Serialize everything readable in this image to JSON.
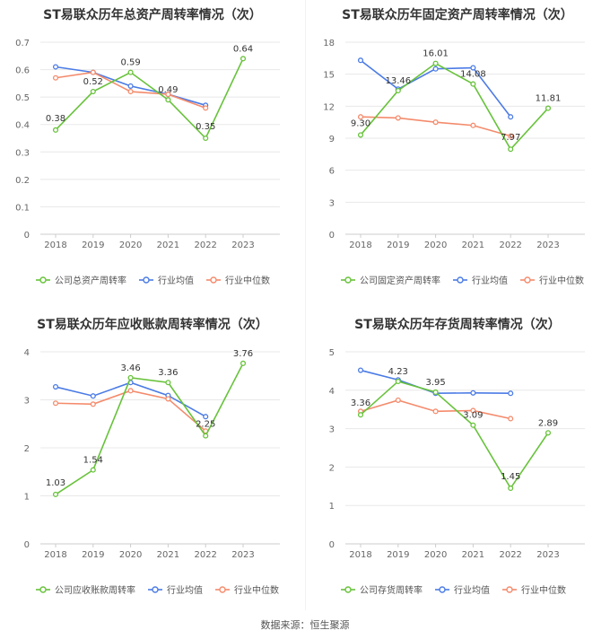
{
  "colors": {
    "company": "#67c23a",
    "avg": "#4b7be5",
    "median": "#f48b6c",
    "grid": "#e8e8e8",
    "axis": "#666666"
  },
  "legend": {
    "avg": "行业均值",
    "median": "行业中位数"
  },
  "source": "数据来源：恒生聚源",
  "chart_data": [
    {
      "type": "line",
      "title": "ST易联众历年总资产周转率情况（次）",
      "x": [
        "2018",
        "2019",
        "2020",
        "2021",
        "2022",
        "2023"
      ],
      "ylim": [
        0,
        0.7
      ],
      "yticks": [
        0,
        0.1,
        0.2,
        0.3,
        0.4,
        0.5,
        0.6,
        0.7
      ],
      "ytick_labels": [
        "0",
        "0.1",
        "0.2",
        "0.3",
        "0.4",
        "0.5",
        "0.6",
        "0.7"
      ],
      "series": [
        {
          "name": "公司总资产周转率",
          "values": [
            0.38,
            0.52,
            0.59,
            0.49,
            0.35,
            0.64
          ],
          "labels": [
            "0.38",
            "0.52",
            "0.59",
            "0.49",
            "0.35",
            "0.64"
          ]
        },
        {
          "name": "行业均值",
          "values": [
            0.61,
            0.59,
            0.54,
            0.51,
            0.47,
            null
          ]
        },
        {
          "name": "行业中位数",
          "values": [
            0.57,
            0.59,
            0.52,
            0.51,
            0.46,
            null
          ]
        }
      ]
    },
    {
      "type": "line",
      "title": "ST易联众历年固定资产周转率情况（次）",
      "x": [
        "2018",
        "2019",
        "2020",
        "2021",
        "2022",
        "2023"
      ],
      "ylim": [
        0,
        18
      ],
      "yticks": [
        0,
        3,
        6,
        9,
        12,
        15,
        18
      ],
      "ytick_labels": [
        "0",
        "3",
        "6",
        "9",
        "12",
        "15",
        "18"
      ],
      "series": [
        {
          "name": "公司固定资产周转率",
          "values": [
            9.3,
            13.46,
            16.01,
            14.08,
            7.97,
            11.81
          ],
          "labels": [
            "9.30",
            "13.46",
            "16.01",
            "14.08",
            "7.97",
            "11.81"
          ]
        },
        {
          "name": "行业均值",
          "values": [
            16.3,
            13.6,
            15.5,
            15.6,
            11.0,
            null
          ]
        },
        {
          "name": "行业中位数",
          "values": [
            11.0,
            10.9,
            10.5,
            10.2,
            9.2,
            null
          ]
        }
      ]
    },
    {
      "type": "line",
      "title": "ST易联众历年应收账款周转率情况（次）",
      "x": [
        "2018",
        "2019",
        "2020",
        "2021",
        "2022",
        "2023"
      ],
      "ylim": [
        0,
        4
      ],
      "yticks": [
        0,
        1,
        2,
        3,
        4
      ],
      "ytick_labels": [
        "0",
        "1",
        "2",
        "3",
        "4"
      ],
      "series": [
        {
          "name": "公司应收账款周转率",
          "values": [
            1.03,
            1.54,
            3.46,
            3.36,
            2.25,
            3.76
          ],
          "labels": [
            "1.03",
            "1.54",
            "3.46",
            "3.36",
            "2.25",
            "3.76"
          ]
        },
        {
          "name": "行业均值",
          "values": [
            3.27,
            3.08,
            3.36,
            3.09,
            2.65,
            null
          ]
        },
        {
          "name": "行业中位数",
          "values": [
            2.93,
            2.91,
            3.19,
            3.02,
            2.35,
            null
          ]
        }
      ]
    },
    {
      "type": "line",
      "title": "ST易联众历年存货周转率情况（次）",
      "x": [
        "2018",
        "2019",
        "2020",
        "2021",
        "2022",
        "2023"
      ],
      "ylim": [
        0,
        5
      ],
      "yticks": [
        0,
        1,
        2,
        3,
        4,
        5
      ],
      "ytick_labels": [
        "0",
        "1",
        "2",
        "3",
        "4",
        "5"
      ],
      "series": [
        {
          "name": "公司存货周转率",
          "values": [
            3.36,
            4.23,
            3.95,
            3.09,
            1.45,
            2.89
          ],
          "labels": [
            "3.36",
            "4.23",
            "3.95",
            "3.09",
            "1.45",
            "2.89"
          ]
        },
        {
          "name": "行业均值",
          "values": [
            4.52,
            4.27,
            3.92,
            3.93,
            3.92,
            null
          ]
        },
        {
          "name": "行业中位数",
          "values": [
            3.45,
            3.74,
            3.45,
            3.47,
            3.26,
            null
          ]
        }
      ]
    }
  ]
}
